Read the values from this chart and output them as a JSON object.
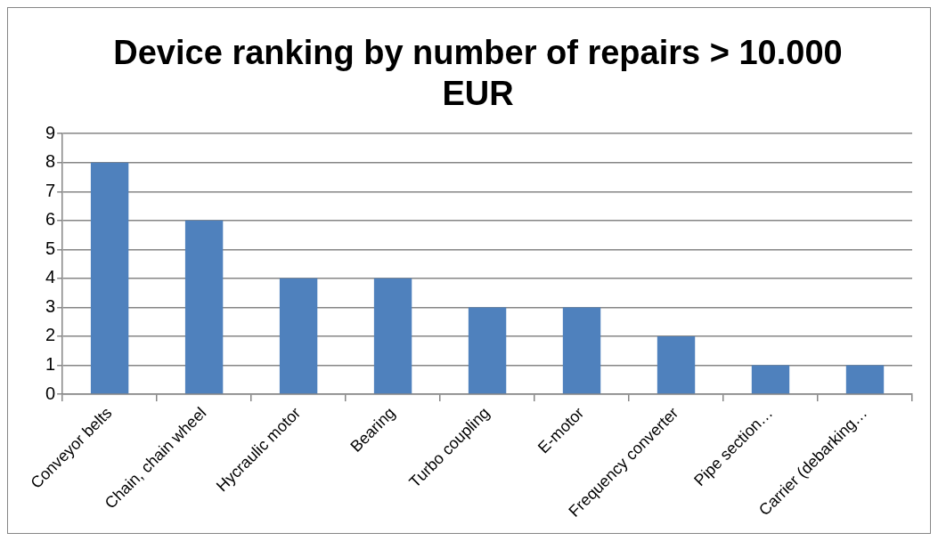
{
  "chart_data": {
    "type": "bar",
    "title": "Device ranking by number of repairs > 10.000 EUR",
    "categories": [
      "Conveyor belts",
      "Chain, chain wheel",
      "Hycraulic motor",
      "Bearing",
      "Turbo coupling",
      "E-motor",
      "Frequency converter",
      "Pipe section…",
      "Carrier (debarking…"
    ],
    "values": [
      8,
      6,
      4,
      4,
      3,
      3,
      2,
      1,
      1
    ],
    "color": "#4f81bd",
    "ylim": [
      0,
      9
    ],
    "yticks": [
      0,
      1,
      2,
      3,
      4,
      5,
      6,
      7,
      8,
      9
    ],
    "grid": "y",
    "legend": false
  }
}
